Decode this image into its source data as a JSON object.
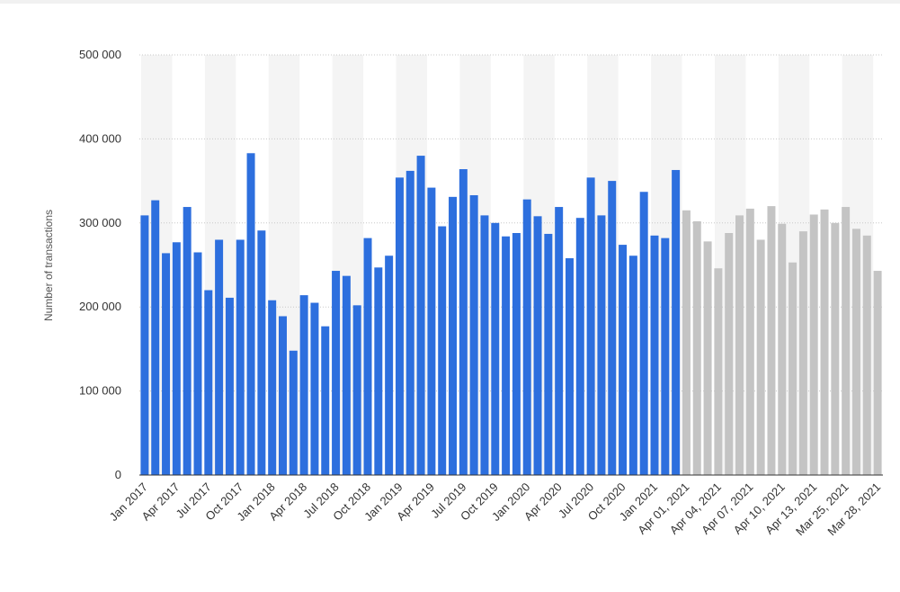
{
  "chart_data": {
    "type": "bar",
    "y_label": "Number of transactions",
    "categories": [
      "Jan 2017",
      null,
      null,
      "Apr 2017",
      null,
      null,
      "Jul 2017",
      null,
      null,
      "Oct 2017",
      null,
      null,
      "Jan 2018",
      null,
      null,
      "Apr 2018",
      null,
      null,
      "Jul 2018",
      null,
      null,
      "Oct 2018",
      null,
      null,
      "Jan 2019",
      null,
      null,
      "Apr 2019",
      null,
      null,
      "Jul 2019",
      null,
      null,
      "Oct 2019",
      null,
      null,
      "Jan 2020",
      null,
      null,
      "Apr 2020",
      null,
      null,
      "Jul 2020",
      null,
      null,
      "Oct 2020",
      null,
      null,
      "Jan 2021",
      null,
      null,
      "Apr 01, 2021",
      null,
      null,
      "Apr 04, 2021",
      null,
      null,
      "Apr 07, 2021",
      null,
      null,
      "Apr 10, 2021",
      null,
      null,
      "Apr 13, 2021",
      null,
      null,
      "Mar 25, 2021",
      null,
      null,
      "Mar 28, 2021"
    ],
    "values": [
      309000,
      327000,
      264000,
      277000,
      319000,
      265000,
      220000,
      280000,
      211000,
      280000,
      383000,
      291000,
      208000,
      189000,
      148000,
      214000,
      205000,
      177000,
      243000,
      237000,
      202000,
      282000,
      247000,
      261000,
      354000,
      362000,
      380000,
      342000,
      296000,
      331000,
      364000,
      333000,
      309000,
      300000,
      284000,
      288000,
      328000,
      308000,
      287000,
      319000,
      258000,
      306000,
      354000,
      309000,
      350000,
      274000,
      261000,
      337000,
      285000,
      282000,
      363000,
      315000,
      302000,
      278000,
      246000,
      288000,
      309000,
      317000,
      280000,
      320000,
      299000,
      253000,
      290000,
      310000,
      316000,
      300000,
      319000,
      293000,
      285000,
      243000
    ],
    "colors": [
      "#2d6fde",
      "#2d6fde",
      "#2d6fde",
      "#2d6fde",
      "#2d6fde",
      "#2d6fde",
      "#2d6fde",
      "#2d6fde",
      "#2d6fde",
      "#2d6fde",
      "#2d6fde",
      "#2d6fde",
      "#2d6fde",
      "#2d6fde",
      "#2d6fde",
      "#2d6fde",
      "#2d6fde",
      "#2d6fde",
      "#2d6fde",
      "#2d6fde",
      "#2d6fde",
      "#2d6fde",
      "#2d6fde",
      "#2d6fde",
      "#2d6fde",
      "#2d6fde",
      "#2d6fde",
      "#2d6fde",
      "#2d6fde",
      "#2d6fde",
      "#2d6fde",
      "#2d6fde",
      "#2d6fde",
      "#2d6fde",
      "#2d6fde",
      "#2d6fde",
      "#2d6fde",
      "#2d6fde",
      "#2d6fde",
      "#2d6fde",
      "#2d6fde",
      "#2d6fde",
      "#2d6fde",
      "#2d6fde",
      "#2d6fde",
      "#2d6fde",
      "#2d6fde",
      "#2d6fde",
      "#2d6fde",
      "#2d6fde",
      "#2d6fde",
      "#c4c4c4",
      "#c4c4c4",
      "#c4c4c4",
      "#c4c4c4",
      "#c4c4c4",
      "#c4c4c4",
      "#c4c4c4",
      "#c4c4c4",
      "#c4c4c4",
      "#c4c4c4",
      "#c4c4c4",
      "#c4c4c4",
      "#c4c4c4",
      "#c4c4c4",
      "#c4c4c4",
      "#c4c4c4",
      "#c4c4c4",
      "#c4c4c4",
      "#c4c4c4"
    ],
    "ylim": [
      0,
      500000
    ],
    "yticks": [
      {
        "value": 0,
        "label": "0"
      },
      {
        "value": 100000,
        "label": "100 000"
      },
      {
        "value": 200000,
        "label": "200 000"
      },
      {
        "value": 300000,
        "label": "300 000"
      },
      {
        "value": 400000,
        "label": "400 000"
      },
      {
        "value": 500000,
        "label": "500 000"
      }
    ],
    "grid": true
  }
}
